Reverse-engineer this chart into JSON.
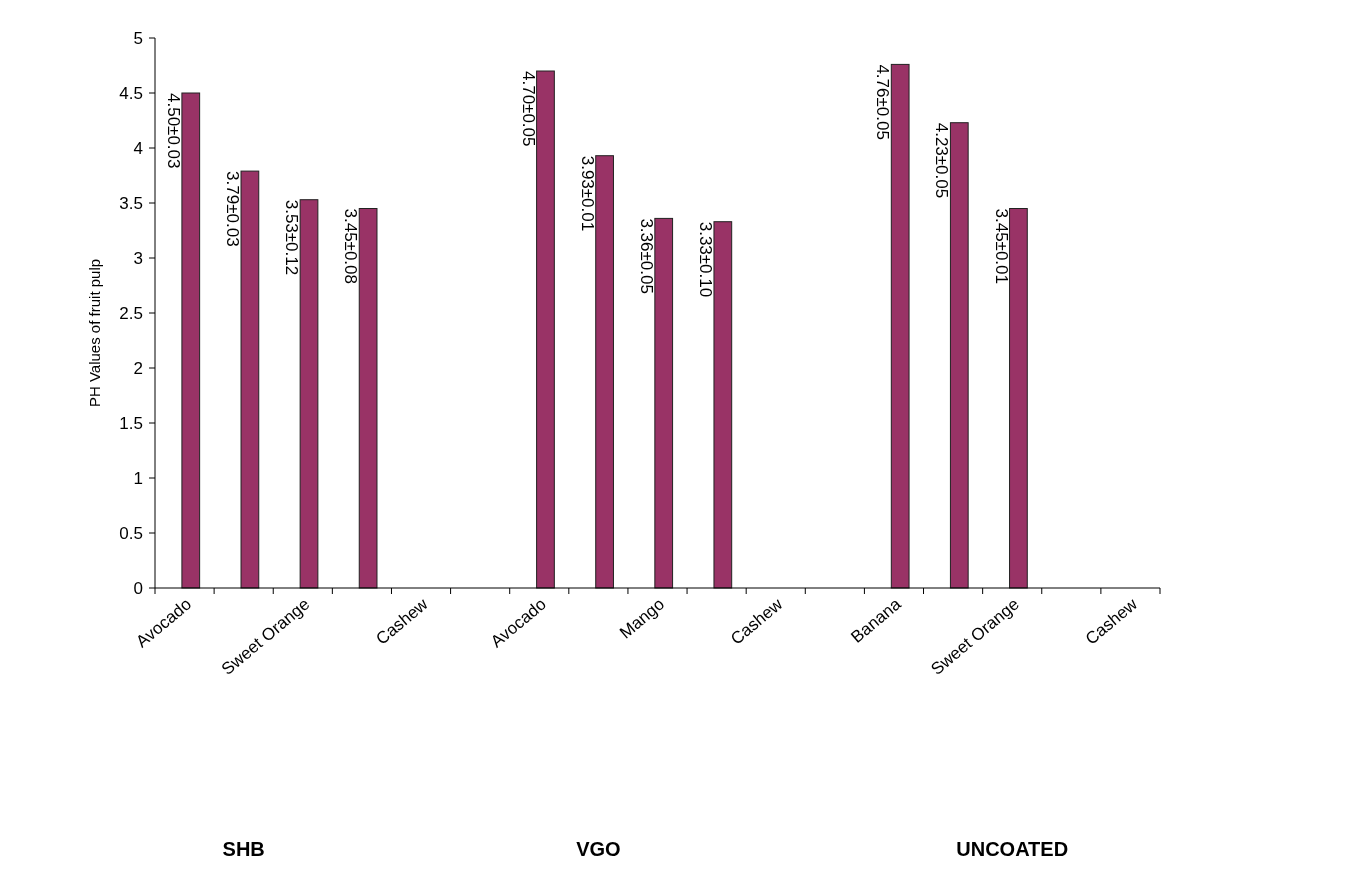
{
  "chart_data": {
    "type": "bar",
    "ylabel": "PH Values of fruit pulp",
    "categories": [
      "Avocado",
      null,
      "Sweet Orange",
      null,
      "Cashew",
      null,
      "Avocado",
      null,
      "Mango",
      null,
      "Cashew",
      null,
      "Banana",
      null,
      "Sweet Orange",
      null,
      "Cashew"
    ],
    "values": [
      4.5,
      3.79,
      3.53,
      3.45,
      null,
      null,
      4.7,
      3.93,
      3.36,
      3.33,
      null,
      null,
      4.76,
      4.23,
      3.45,
      null,
      null
    ],
    "value_labels": [
      "4.50±0.03",
      "3.79±0.03",
      "3.53±0.12",
      "3.45±0.08",
      null,
      null,
      "4.70±0.05",
      "3.93±0.01",
      "3.36±0.05",
      "3.33±0.10",
      null,
      null,
      "4.76±0.05",
      "4.23±0.05",
      "3.45±0.01",
      null,
      null
    ],
    "color": "#993366",
    "ylim": [
      0,
      5
    ],
    "yticks": [
      0,
      0.5,
      1,
      1.5,
      2,
      2.5,
      3,
      3.5,
      4,
      4.5,
      5
    ],
    "annotations": [
      "SHB",
      "VGO",
      "UNCOATED"
    ]
  }
}
